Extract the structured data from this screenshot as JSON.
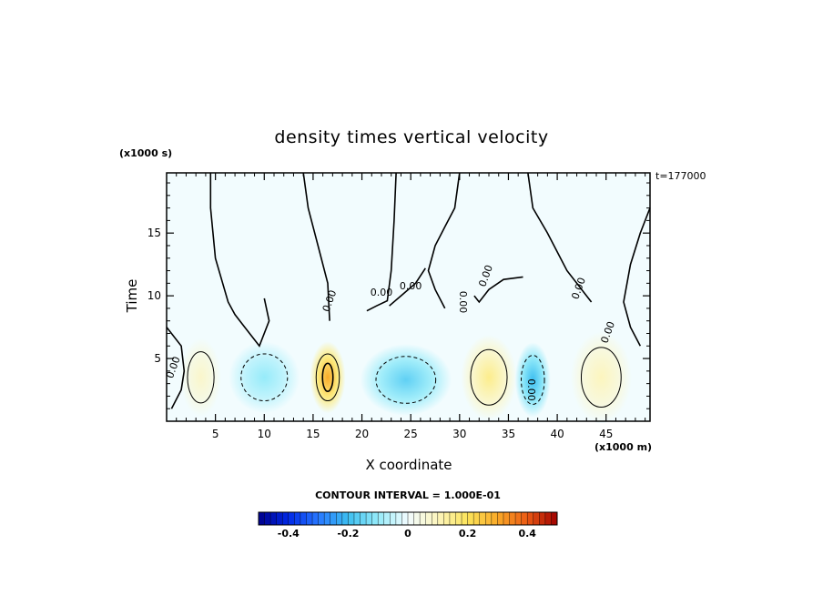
{
  "chart_data": {
    "type": "heatmap",
    "title": "density times vertical velocity",
    "xlabel": "X coordinate",
    "ylabel": "Time",
    "x_unit": "(x1000 m)",
    "y_unit": "(x1000 s)",
    "time_label": "t=177000",
    "xlim": [
      0,
      49.5
    ],
    "ylim": [
      0,
      19.8
    ],
    "xticks": [
      5,
      10,
      15,
      20,
      25,
      30,
      35,
      40,
      45
    ],
    "yticks": [
      5,
      10,
      15
    ],
    "contour_interval_label": "CONTOUR INTERVAL = 1.000E-01",
    "contour_labels": [
      "0.00",
      "0.00",
      "0.00",
      "0.00",
      "0.00",
      "0.00",
      "0.00",
      "0.00",
      "0.00"
    ],
    "colorbar": {
      "range": [
        -0.5,
        0.5
      ],
      "ticks": [
        "-0.4",
        "-0.2",
        "0",
        "0.2",
        "0.4"
      ],
      "tick_values": [
        -0.4,
        -0.2,
        0,
        0.2,
        0.4
      ]
    },
    "features": [
      {
        "x": 3.5,
        "y": 3.5,
        "value": 0.08,
        "sx": 1.6,
        "sy": 2.4
      },
      {
        "x": 10,
        "y": 3.5,
        "value": -0.1,
        "sx": 2.8,
        "sy": 2.2
      },
      {
        "x": 16.5,
        "y": 3.5,
        "value": 0.3,
        "sx": 1.4,
        "sy": 2.2
      },
      {
        "x": 24.5,
        "y": 3.3,
        "value": -0.16,
        "sx": 3.6,
        "sy": 2.2
      },
      {
        "x": 33,
        "y": 3.5,
        "value": 0.15,
        "sx": 2.2,
        "sy": 2.6
      },
      {
        "x": 37.5,
        "y": 3.3,
        "value": -0.2,
        "sx": 1.4,
        "sy": 2.3
      },
      {
        "x": 44.5,
        "y": 3.5,
        "value": 0.1,
        "sx": 2.4,
        "sy": 2.8
      }
    ]
  },
  "colors": {
    "zero_fill": "#f2fcfe",
    "line": "#000000"
  }
}
